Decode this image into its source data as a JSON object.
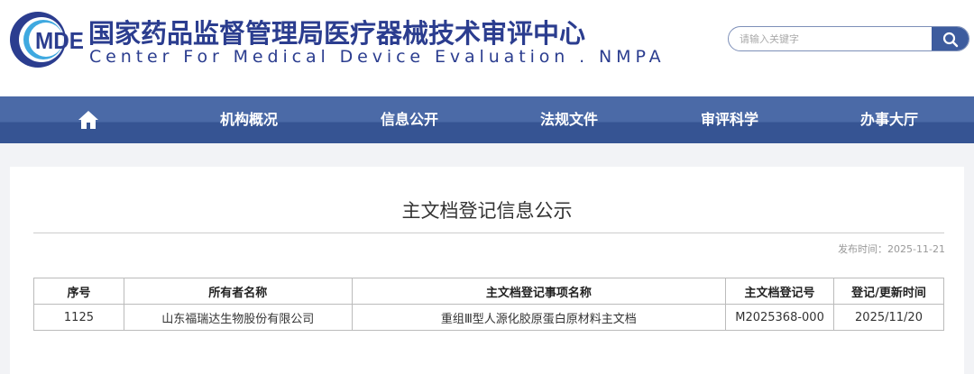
{
  "header": {
    "logo_text": "MDE",
    "title_cn": "国家药品监督管理局医疗器械技术审评中心",
    "title_en": "Center For Medical Device Evaluation . NMPA",
    "search_placeholder": "请输入关键字"
  },
  "nav": {
    "items": [
      {
        "label": "机构概况"
      },
      {
        "label": "信息公开"
      },
      {
        "label": "法规文件"
      },
      {
        "label": "审评科学"
      },
      {
        "label": "办事大厅"
      }
    ]
  },
  "main": {
    "title": "主文档登记信息公示",
    "publish_date": "发布时间：2025-11-21",
    "table": {
      "headers": [
        "序号",
        "所有者名称",
        "主文档登记事项名称",
        "主文档登记号",
        "登记/更新时间"
      ],
      "rows": [
        [
          "1125",
          "山东福瑞达生物股份有限公司",
          "重组Ⅲ型人源化胶原蛋白原材料主文档",
          "M2025368-000",
          "2025/11/20"
        ]
      ]
    }
  },
  "colors": {
    "brand": "#2b3d8f",
    "nav_top": "#4b6aa7",
    "nav_bottom": "#365493"
  }
}
